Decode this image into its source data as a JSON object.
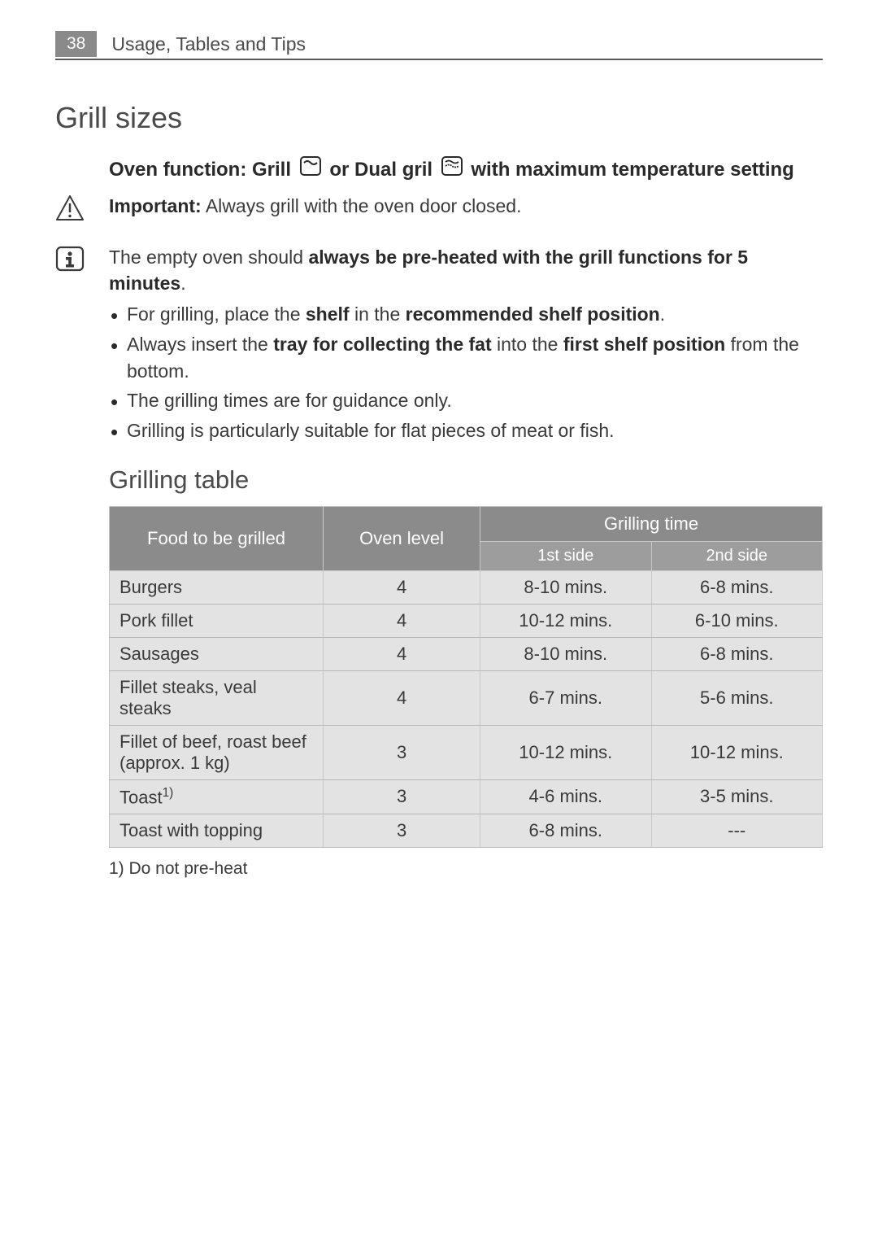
{
  "header": {
    "page_number": "38",
    "section": "Usage, Tables and Tips"
  },
  "title_grill_sizes": "Grill sizes",
  "oven_function": {
    "prefix": "Oven function: Grill",
    "middle": "or Dual gril",
    "suffix": "with maximum temperature setting"
  },
  "important": {
    "label": "Important:",
    "text": " Always grill with the oven door closed."
  },
  "info": {
    "lead_1": "The empty oven should ",
    "bold_1": "always be pre-heated with the grill functions for 5 minutes",
    "lead_1_end": ".",
    "bullets": [
      {
        "pre": "For grilling, place the ",
        "b1": "shelf",
        "mid": " in the ",
        "b2": "recommended shelf position",
        "end": "."
      },
      {
        "pre": "Always insert the ",
        "b1": "tray for collecting the fat",
        "mid": " into the ",
        "b2": "first shelf position",
        "end": " from the bottom."
      },
      {
        "plain": "The grilling times are for guidance only."
      },
      {
        "plain": "Grilling is particularly suitable for flat pieces of meat or fish."
      }
    ]
  },
  "title_grilling_table": "Grilling table",
  "table": {
    "headers": {
      "food": "Food to be grilled",
      "oven_level": "Oven level",
      "grilling_time": "Grilling time",
      "side1": "1st side",
      "side2": "2nd side"
    },
    "rows": [
      {
        "food": "Burgers",
        "level": "4",
        "s1": "8-10 mins.",
        "s2": "6-8 mins."
      },
      {
        "food": "Pork fillet",
        "level": "4",
        "s1": "10-12 mins.",
        "s2": "6-10 mins."
      },
      {
        "food": "Sausages",
        "level": "4",
        "s1": "8-10 mins.",
        "s2": "6-8 mins."
      },
      {
        "food": "Fillet steaks, veal steaks",
        "level": "4",
        "s1": "6-7 mins.",
        "s2": "5-6 mins."
      },
      {
        "food": "Fillet of beef, roast beef (approx. 1 kg)",
        "level": "3",
        "s1": "10-12 mins.",
        "s2": "10-12 mins."
      },
      {
        "food_html": "Toast<sup>1)</sup>",
        "level": "3",
        "s1": "4-6 mins.",
        "s2": "3-5 mins."
      },
      {
        "food": "Toast with topping",
        "level": "3",
        "s1": "6-8 mins.",
        "s2": "---"
      }
    ]
  },
  "footnote": "1) Do not pre-heat",
  "colors": {
    "header_bg": "#8a8a8a",
    "table_th_bg": "#8b8b8b",
    "table_sub_bg": "#9d9d9d",
    "table_td_bg": "#e3e3e3",
    "text": "#3a3a3a"
  }
}
